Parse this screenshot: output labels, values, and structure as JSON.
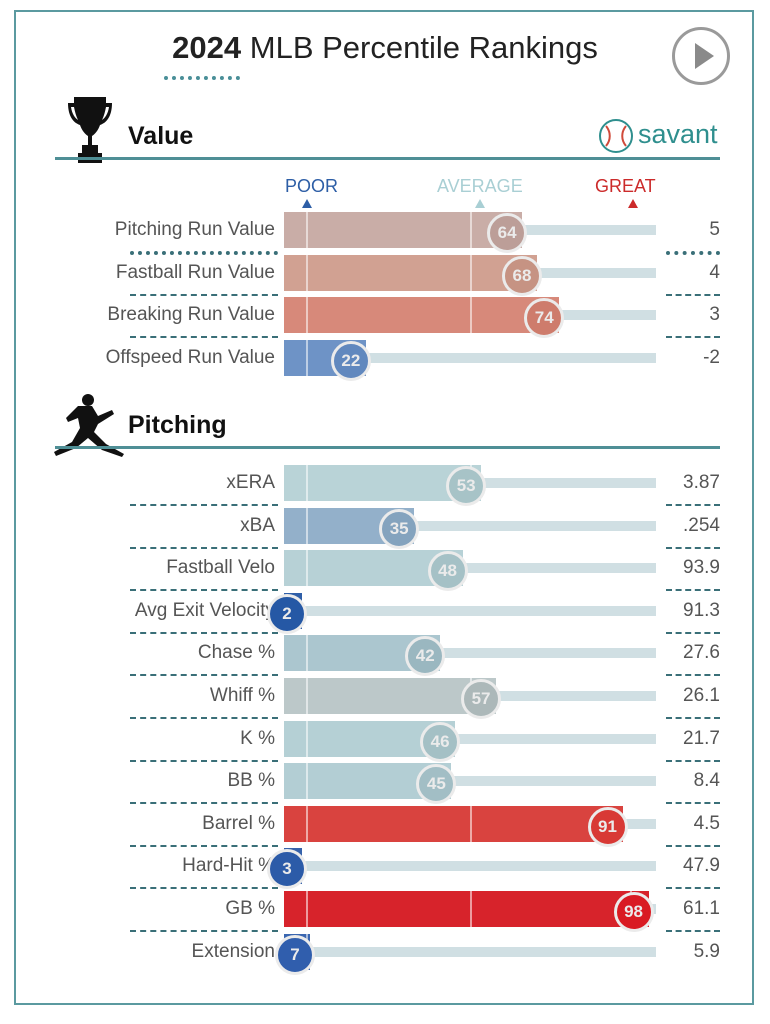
{
  "title": {
    "year": "2024",
    "rest": "MLB Percentile Rankings"
  },
  "play_icon": "play-icon",
  "brand": {
    "name": "savant",
    "color": "#2f8f8e"
  },
  "scale": {
    "poor": "POOR",
    "average": "AVERAGE",
    "great": "GREAT",
    "poor_color": "#2d5ea6",
    "average_color": "#a9cfd4",
    "great_color": "#cc2b2b"
  },
  "chart_data": {
    "type": "bar",
    "title": "2024 MLB Percentile Rankings",
    "xlim": [
      0,
      100
    ],
    "sections": [
      {
        "name": "Value",
        "icon": "trophy-icon",
        "metrics": [
          {
            "label": "Pitching Run Value",
            "percentile": 64,
            "value": "5",
            "color": "#c9ada7"
          },
          {
            "label": "Fastball Run Value",
            "percentile": 68,
            "value": "4",
            "color": "#d1a192"
          },
          {
            "label": "Breaking Run Value",
            "percentile": 74,
            "value": "3",
            "color": "#d7897a"
          },
          {
            "label": "Offspeed Run Value",
            "percentile": 22,
            "value": "-2",
            "color": "#6e93c6"
          }
        ]
      },
      {
        "name": "Pitching",
        "icon": "pitcher-icon",
        "metrics": [
          {
            "label": "xERA",
            "percentile": 53,
            "value": "3.87",
            "color": "#b9d3d7"
          },
          {
            "label": "xBA",
            "percentile": 35,
            "value": ".254",
            "color": "#93b0ca"
          },
          {
            "label": "Fastball Velo",
            "percentile": 48,
            "value": "93.9",
            "color": "#b7d1d6"
          },
          {
            "label": "Avg Exit Velocity",
            "percentile": 2,
            "value": "91.3",
            "color": "#2f5fa8"
          },
          {
            "label": "Chase %",
            "percentile": 42,
            "value": "27.6",
            "color": "#abc6cf"
          },
          {
            "label": "Whiff %",
            "percentile": 57,
            "value": "26.1",
            "color": "#bcc8c9"
          },
          {
            "label": "K %",
            "percentile": 46,
            "value": "21.7",
            "color": "#b5d0d5"
          },
          {
            "label": "BB %",
            "percentile": 45,
            "value": "8.4",
            "color": "#b3ced4"
          },
          {
            "label": "Barrel %",
            "percentile": 91,
            "value": "4.5",
            "color": "#d9433f"
          },
          {
            "label": "Hard-Hit %",
            "percentile": 3,
            "value": "47.9",
            "color": "#3662ab"
          },
          {
            "label": "GB %",
            "percentile": 98,
            "value": "61.1",
            "color": "#d7232b"
          },
          {
            "label": "Extension",
            "percentile": 7,
            "value": "5.9",
            "color": "#3a66b0"
          }
        ]
      }
    ]
  }
}
